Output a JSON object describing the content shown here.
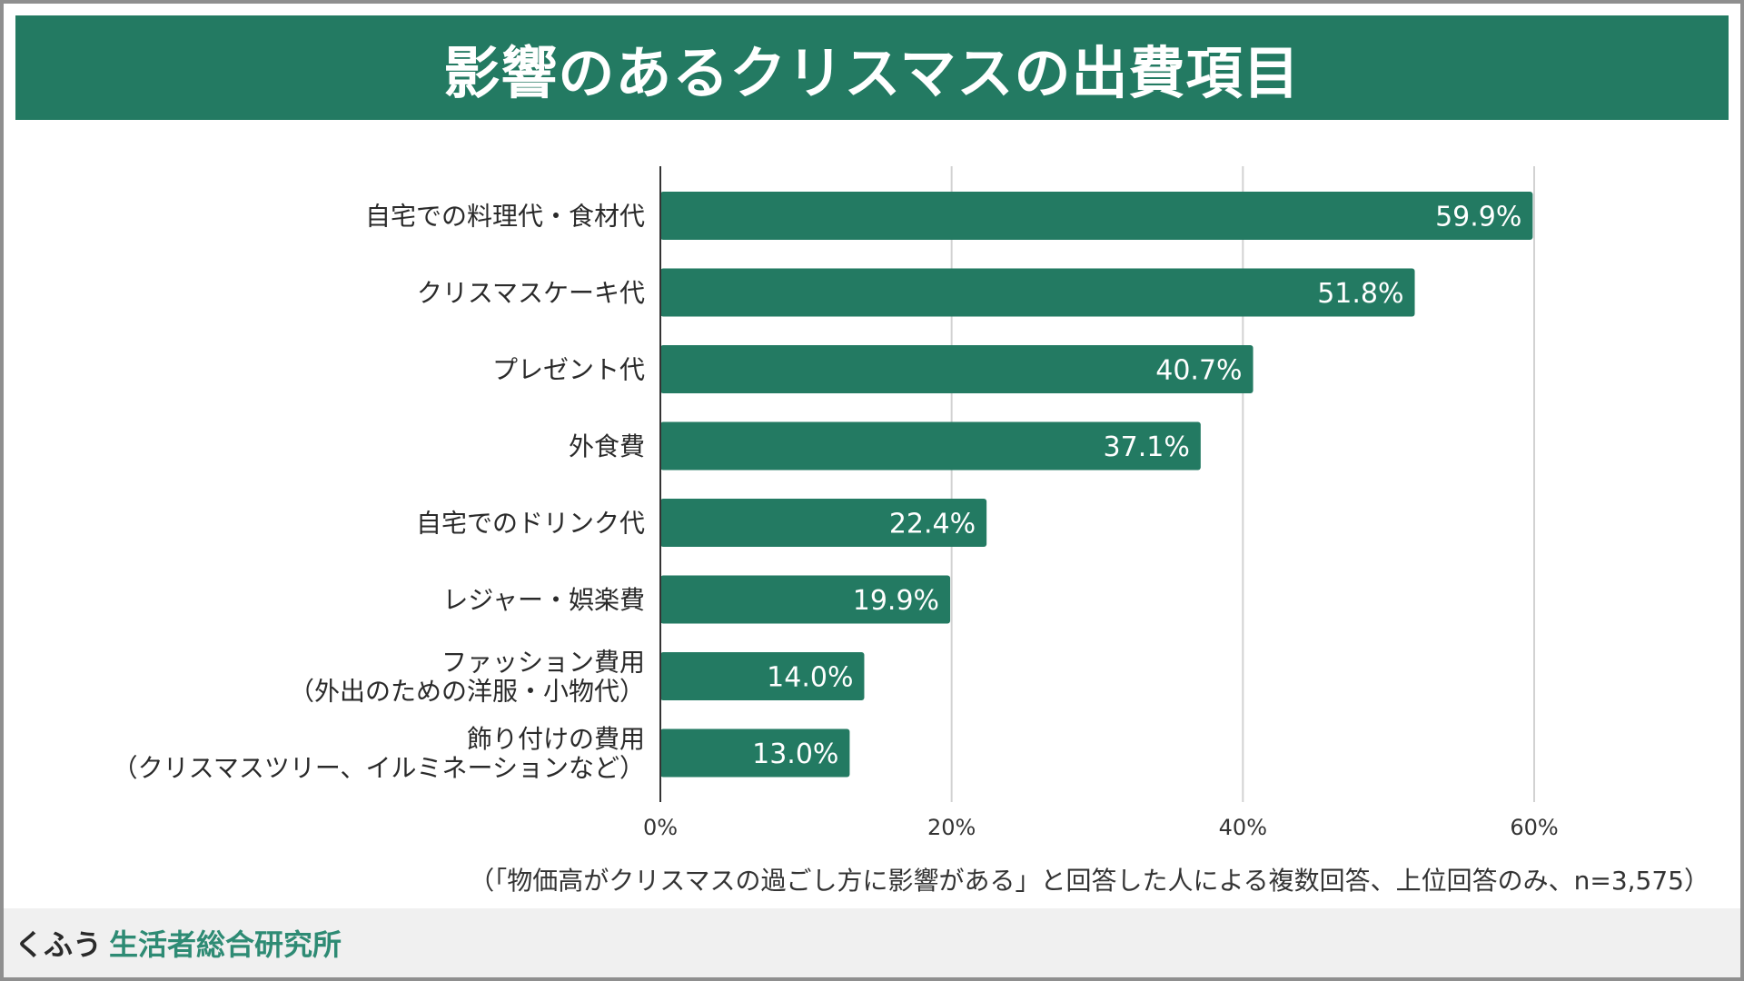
{
  "header": {
    "title": "影響のあるクリスマスの出費項目"
  },
  "chart_data": {
    "type": "bar",
    "orientation": "horizontal",
    "title": "影響のあるクリスマスの出費項目",
    "categories": [
      [
        "自宅での料理代・食材代"
      ],
      [
        "クリスマスケーキ代"
      ],
      [
        "プレゼント代"
      ],
      [
        "外食費"
      ],
      [
        "自宅でのドリンク代"
      ],
      [
        "レジャー・娯楽費"
      ],
      [
        "ファッション費用",
        "（外出のための洋服・小物代）"
      ],
      [
        "飾り付けの費用",
        "（クリスマスツリー、イルミネーションなど）"
      ]
    ],
    "values": [
      59.9,
      51.8,
      40.7,
      37.1,
      22.4,
      19.9,
      14.0,
      13.0
    ],
    "value_labels": [
      "59.9%",
      "51.8%",
      "40.7%",
      "37.1%",
      "22.4%",
      "19.9%",
      "14.0%",
      "13.0%"
    ],
    "xlim": [
      0,
      60
    ],
    "xticks": [
      0,
      20,
      40,
      60
    ],
    "xtick_labels": [
      "0%",
      "20%",
      "40%",
      "60%"
    ],
    "xlabel": "",
    "ylabel": "",
    "grid": true
  },
  "note": "（「物価高がクリスマスの過ごし方に影響がある」と回答した人による複数回答、上位回答のみ、n=3,575）",
  "footer": {
    "brand": "くふう",
    "org": "生活者総合研究所"
  },
  "colors": {
    "accent": "#237a62",
    "grid": "#d2d2d2",
    "axis": "#333333",
    "footer_org": "#2e8b74"
  }
}
